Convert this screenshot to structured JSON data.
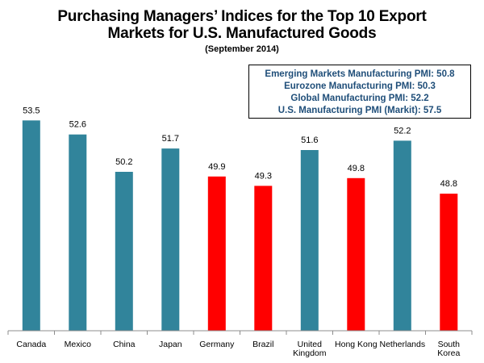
{
  "chart_data": {
    "type": "bar",
    "title": [
      "Purchasing Managers’ Indices for the Top 10 Export",
      "Markets for U.S. Manufactured Goods"
    ],
    "subtitle": "(September 2014)",
    "categories": [
      [
        "Canada"
      ],
      [
        "Mexico"
      ],
      [
        "China"
      ],
      [
        "Japan"
      ],
      [
        "Germany"
      ],
      [
        "Brazil"
      ],
      [
        "United",
        "Kingdom"
      ],
      [
        "Hong Kong"
      ],
      [
        "Netherlands"
      ],
      [
        "South",
        "Korea"
      ]
    ],
    "values": [
      53.5,
      52.6,
      50.2,
      51.7,
      49.9,
      49.3,
      51.6,
      49.8,
      52.2,
      48.8
    ],
    "value_labels": [
      "53.5",
      "52.6",
      "50.2",
      "51.7",
      "49.9",
      "49.3",
      "51.6",
      "49.8",
      "52.2",
      "48.8"
    ],
    "ylim": [
      40,
      54.5
    ],
    "y_axis_visible": false,
    "grid": false,
    "colors": {
      "above_50": "#31849b",
      "below_50": "#ff0000",
      "info_text": "#1f4e79"
    },
    "annotations": [
      "Emerging Markets Manufacturing PMI: 50.8",
      "Eurozone Manufacturing PMI: 50.3",
      "Global Manufacturing PMI: 52.2",
      "U.S. Manufacturing PMI (Markit): 57.5"
    ]
  }
}
